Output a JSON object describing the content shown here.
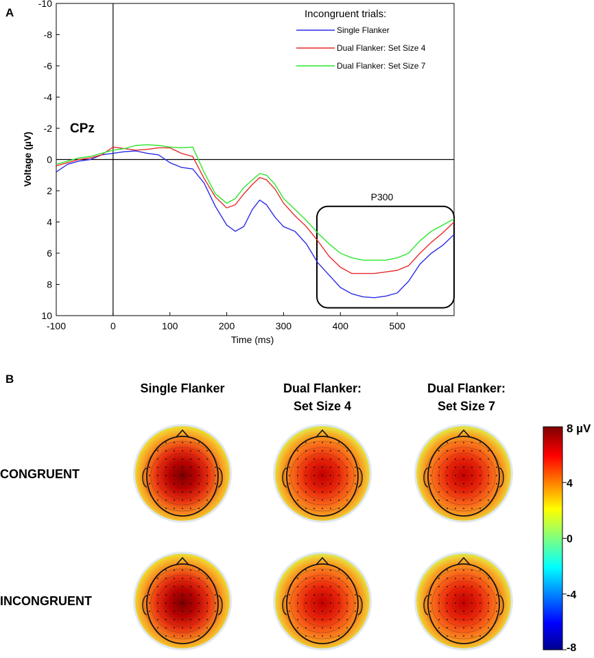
{
  "panel_a": {
    "label": "A",
    "channel_label": "CPz",
    "roi_label": "P300",
    "legend_title": "Incongruent trials:"
  },
  "panel_b": {
    "label": "B",
    "columns": [
      "Single Flanker",
      "Dual Flanker:",
      "Set Size 4",
      "Dual Flanker:",
      "Set Size 7"
    ],
    "column_headers": [
      {
        "line1": "Single Flanker",
        "line2": ""
      },
      {
        "line1": "Dual Flanker:",
        "line2": "Set Size 4"
      },
      {
        "line1": "Dual Flanker:",
        "line2": "Set Size 7"
      }
    ],
    "rows": [
      "CONGRUENT",
      "INCONGRUENT"
    ],
    "colorbar": {
      "unit_label": "8 µV",
      "ticks": [
        "4",
        "0",
        "-4",
        "-8"
      ],
      "tick_values": [
        4,
        0,
        -4,
        -8
      ],
      "range": [
        -8,
        8
      ]
    },
    "intensity": [
      [
        0.85,
        0.72,
        0.7
      ],
      [
        1.0,
        0.74,
        0.68
      ]
    ]
  },
  "chart_data": {
    "type": "line",
    "title": "",
    "xlabel": "Time (ms)",
    "ylabel": "Voltage (µV)",
    "xlim": [
      -100,
      600
    ],
    "ylim": [
      -10,
      10
    ],
    "y_inverted": true,
    "xticks": [
      -100,
      0,
      100,
      200,
      300,
      400,
      500
    ],
    "yticks": [
      -10,
      -8,
      -6,
      -4,
      -2,
      0,
      2,
      4,
      6,
      8,
      10
    ],
    "xtick_labels": [
      "-100",
      "0",
      "100",
      "200",
      "300",
      "400",
      "500"
    ],
    "ytick_labels": [
      "-10",
      "-8",
      "-6",
      "-4",
      "-2",
      "0",
      "2",
      "4",
      "6",
      "8",
      "10"
    ],
    "reference_lines": {
      "x": 0,
      "y": 0
    },
    "roi": {
      "label": "P300",
      "x_range": [
        355,
        600
      ],
      "y_range": [
        3,
        9.5
      ]
    },
    "legend_title": "Incongruent trials:",
    "series": [
      {
        "name": "Single Flanker",
        "color": "#2a2ae6",
        "x": [
          -100,
          -80,
          -60,
          -40,
          -20,
          0,
          20,
          40,
          60,
          80,
          100,
          120,
          140,
          160,
          180,
          200,
          215,
          230,
          245,
          258,
          270,
          285,
          300,
          320,
          340,
          360,
          380,
          400,
          420,
          440,
          460,
          480,
          500,
          520,
          540,
          560,
          580,
          600
        ],
        "y": [
          0.8,
          0.3,
          0.1,
          0.0,
          -0.3,
          -0.4,
          -0.5,
          -0.55,
          -0.4,
          -0.3,
          0.2,
          0.5,
          0.6,
          1.5,
          3.0,
          4.2,
          4.6,
          4.3,
          3.2,
          2.6,
          2.9,
          3.7,
          4.3,
          4.6,
          5.4,
          6.6,
          7.4,
          8.2,
          8.6,
          8.8,
          8.85,
          8.75,
          8.55,
          7.8,
          6.7,
          6.0,
          5.5,
          4.8
        ]
      },
      {
        "name": "Dual Flanker: Set Size 4",
        "color": "#e62a2a",
        "x": [
          -100,
          -80,
          -60,
          -40,
          -20,
          0,
          20,
          40,
          60,
          80,
          100,
          120,
          140,
          160,
          180,
          200,
          215,
          230,
          245,
          258,
          270,
          285,
          300,
          320,
          340,
          360,
          380,
          400,
          420,
          440,
          460,
          480,
          500,
          520,
          540,
          560,
          580,
          600
        ],
        "y": [
          0.4,
          0.2,
          0.0,
          -0.1,
          -0.3,
          -0.8,
          -0.7,
          -0.6,
          -0.65,
          -0.75,
          -0.75,
          -0.4,
          -0.2,
          1.2,
          2.4,
          3.1,
          2.9,
          2.2,
          1.6,
          1.15,
          1.3,
          1.9,
          2.8,
          3.6,
          4.3,
          5.2,
          6.2,
          6.9,
          7.3,
          7.3,
          7.3,
          7.2,
          7.1,
          6.8,
          6.0,
          5.3,
          4.7,
          4.0
        ]
      },
      {
        "name": "Dual Flanker: Set Size 7",
        "color": "#2ae62a",
        "x": [
          -100,
          -80,
          -60,
          -40,
          -20,
          0,
          20,
          40,
          60,
          80,
          100,
          120,
          140,
          160,
          180,
          200,
          215,
          230,
          245,
          258,
          270,
          285,
          300,
          320,
          340,
          360,
          380,
          400,
          420,
          440,
          460,
          480,
          500,
          520,
          540,
          560,
          580,
          600
        ],
        "y": [
          0.3,
          0.1,
          -0.1,
          -0.2,
          -0.4,
          -0.6,
          -0.7,
          -0.9,
          -0.95,
          -0.9,
          -0.8,
          -0.75,
          -0.8,
          0.8,
          2.2,
          2.8,
          2.5,
          1.8,
          1.3,
          0.9,
          1.0,
          1.6,
          2.5,
          3.2,
          3.9,
          4.7,
          5.4,
          6.0,
          6.3,
          6.45,
          6.45,
          6.45,
          6.3,
          6.0,
          5.2,
          4.6,
          4.2,
          3.8
        ]
      }
    ]
  }
}
